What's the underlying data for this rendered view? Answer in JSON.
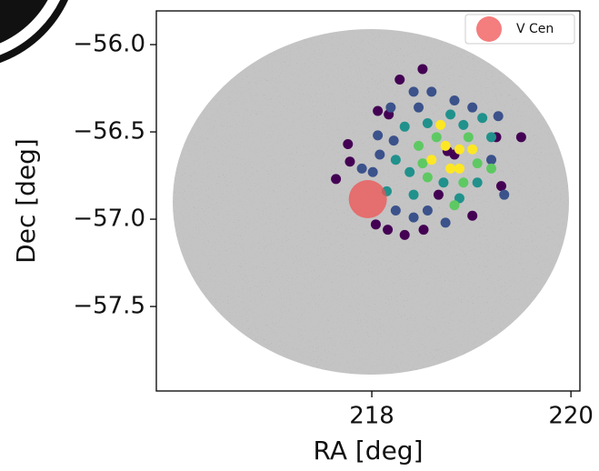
{
  "chart_data": {
    "type": "scatter",
    "xlabel": "RA [deg]",
    "ylabel": "Dec [deg]",
    "xlim": [
      215.836,
      220.09
    ],
    "ylim": [
      -57.984,
      -55.807
    ],
    "xticks": [
      218,
      220
    ],
    "yticks": [
      {
        "value": -56.0,
        "label": "−56.0"
      },
      {
        "value": -56.5,
        "label": "−56.5"
      },
      {
        "value": -57.0,
        "label": "−57.0"
      },
      {
        "value": -57.5,
        "label": "−57.5"
      }
    ],
    "legend": "upper right",
    "series": [
      {
        "color": "#440154",
        "x": [
          218.51,
          218.28,
          218.06,
          218.17,
          217.76,
          217.78,
          217.64,
          218.16,
          218.33,
          218.52,
          218.83,
          219.25,
          219.5,
          218.76,
          218.67,
          219.3,
          219.01,
          218.04
        ],
        "values": [
          -56.14,
          -56.2,
          -56.38,
          -56.4,
          -56.57,
          -56.67,
          -56.77,
          -57.06,
          -57.09,
          -57.06,
          -56.63,
          -56.53,
          -56.53,
          -56.61,
          -56.86,
          -56.81,
          -56.98,
          -57.03
        ]
      },
      {
        "color": "#3b528b",
        "x": [
          218.42,
          218.6,
          218.19,
          218.47,
          218.83,
          219.01,
          219.27,
          218.06,
          218.01,
          217.9,
          218.24,
          218.42,
          218.74,
          218.56,
          219.2,
          219.33,
          218.08,
          218.22
        ],
        "values": [
          -56.27,
          -56.27,
          -56.36,
          -56.36,
          -56.32,
          -56.36,
          -56.41,
          -56.52,
          -56.73,
          -56.71,
          -56.95,
          -56.99,
          -57.02,
          -56.95,
          -56.66,
          -56.86,
          -56.63,
          -56.55
        ]
      },
      {
        "color": "#21918c",
        "x": [
          218.79,
          218.92,
          218.56,
          218.33,
          218.24,
          218.15,
          218.42,
          218.88,
          219.11,
          219.2,
          218.38,
          218.72,
          219.06
        ],
        "values": [
          -56.4,
          -56.46,
          -56.45,
          -56.47,
          -56.66,
          -56.84,
          -56.86,
          -56.88,
          -56.42,
          -56.53,
          -56.73,
          -56.79,
          -56.79
        ]
      },
      {
        "color": "#5ec962",
        "x": [
          218.47,
          218.65,
          218.97,
          218.56,
          218.92,
          219.06,
          219.2,
          218.51,
          218.83
        ],
        "values": [
          -56.58,
          -56.53,
          -56.53,
          -56.76,
          -56.79,
          -56.68,
          -56.71,
          -56.68,
          -56.92
        ]
      },
      {
        "color": "#fde725",
        "x": [
          218.74,
          218.88,
          218.79,
          218.6,
          218.88,
          218.69,
          219.01
        ],
        "values": [
          -56.58,
          -56.6,
          -56.71,
          -56.66,
          -56.71,
          -56.46,
          -56.6
        ]
      },
      {
        "name": "V Cen",
        "color": "#f05252",
        "x": [
          217.96
        ],
        "values": [
          -56.885
        ]
      }
    ]
  }
}
